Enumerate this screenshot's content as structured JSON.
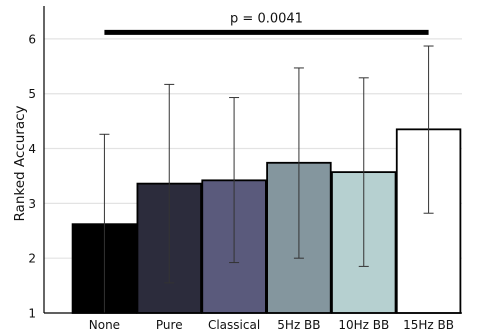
{
  "chart_data": {
    "type": "bar",
    "categories": [
      "None",
      "Pure",
      "Classical",
      "5Hz BB",
      "10Hz BB",
      "15Hz BB"
    ],
    "values": [
      2.62,
      3.36,
      3.42,
      3.74,
      3.57,
      4.35
    ],
    "error_low": [
      1.0,
      1.55,
      1.92,
      2.0,
      1.85,
      2.82
    ],
    "error_high": [
      4.26,
      5.17,
      4.93,
      5.47,
      5.29,
      5.87
    ],
    "bar_colors": [
      "#000000",
      "#2c2c3c",
      "#5a5a7c",
      "#84969e",
      "#b6d0d0",
      "#ffffff"
    ],
    "xlabel": "",
    "ylabel": "Ranked Accuracy",
    "ylim": [
      1,
      6.6
    ],
    "yticks": [
      1,
      2,
      3,
      4,
      5,
      6
    ],
    "grid": true,
    "annotation": {
      "text": "p = 0.0041",
      "from_category": "None",
      "to_category": "15Hz BB",
      "y": 6.12
    }
  }
}
